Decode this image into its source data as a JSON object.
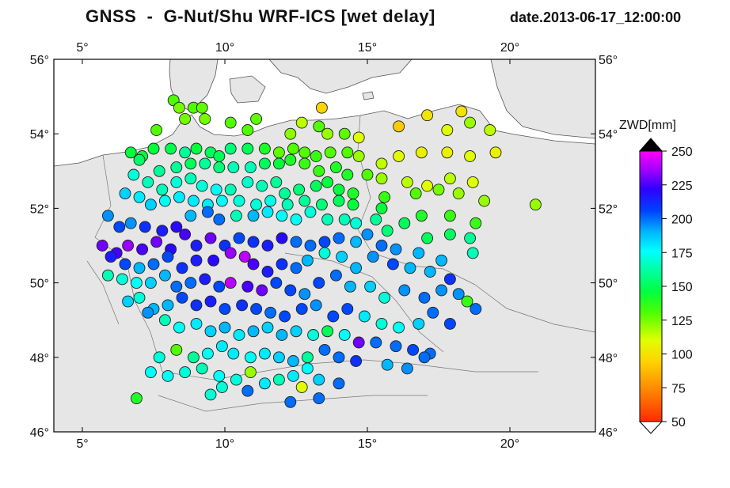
{
  "title": "GNSS  -  G-Nut/Shu WRF-ICS [wet delay]",
  "date": "date.2013-06-17_12:00:00",
  "map": {
    "lon_range": [
      4,
      23
    ],
    "lat_range": [
      46,
      56
    ],
    "lon_ticks": [
      "5°",
      "10°",
      "15°",
      "20°"
    ],
    "lat_ticks": [
      "46°",
      "48°",
      "50°",
      "52°",
      "54°",
      "56°"
    ],
    "land_color": "#e6e6e6",
    "sea_color": "#ffffff"
  },
  "colorbar": {
    "label": "ZWD[mm]",
    "min": 50,
    "max": 250,
    "ticks": [
      "250",
      "225",
      "200",
      "175",
      "150",
      "125",
      "100",
      "75",
      "50"
    ]
  },
  "stations": [
    [
      8.2,
      54.9,
      130
    ],
    [
      8.4,
      54.7,
      125
    ],
    [
      8.9,
      54.7,
      130
    ],
    [
      9.2,
      54.7,
      128
    ],
    [
      8.6,
      54.4,
      125
    ],
    [
      9.3,
      54.4,
      125
    ],
    [
      10.2,
      54.3,
      130
    ],
    [
      10.8,
      54.1,
      130
    ],
    [
      11.1,
      54.4,
      128
    ],
    [
      7.6,
      54.1,
      130
    ],
    [
      12.3,
      54.0,
      122
    ],
    [
      12.7,
      54.3,
      115
    ],
    [
      13.3,
      54.2,
      130
    ],
    [
      13.4,
      54.7,
      95
    ],
    [
      13.6,
      54.0,
      120
    ],
    [
      14.2,
      54.0,
      128
    ],
    [
      14.7,
      53.9,
      110
    ],
    [
      16.1,
      54.2,
      92
    ],
    [
      17.1,
      54.5,
      100
    ],
    [
      18.3,
      54.6,
      100
    ],
    [
      17.8,
      54.1,
      110
    ],
    [
      18.6,
      54.3,
      120
    ],
    [
      19.3,
      54.1,
      115
    ],
    [
      6.7,
      53.5,
      145
    ],
    [
      7.1,
      53.4,
      145
    ],
    [
      7.5,
      53.6,
      145
    ],
    [
      8.1,
      53.6,
      148
    ],
    [
      8.6,
      53.5,
      160
    ],
    [
      9.0,
      53.6,
      145
    ],
    [
      9.5,
      53.5,
      150
    ],
    [
      9.8,
      53.4,
      150
    ],
    [
      10.2,
      53.6,
      155
    ],
    [
      10.8,
      53.6,
      150
    ],
    [
      11.4,
      53.6,
      140
    ],
    [
      11.9,
      53.5,
      128
    ],
    [
      12.4,
      53.6,
      130
    ],
    [
      12.8,
      53.5,
      130
    ],
    [
      13.2,
      53.4,
      135
    ],
    [
      13.7,
      53.5,
      130
    ],
    [
      14.3,
      53.5,
      130
    ],
    [
      14.7,
      53.4,
      120
    ],
    [
      15.5,
      53.2,
      115
    ],
    [
      16.1,
      53.4,
      108
    ],
    [
      16.9,
      53.5,
      105
    ],
    [
      17.8,
      53.5,
      105
    ],
    [
      18.6,
      53.4,
      110
    ],
    [
      19.5,
      53.5,
      105
    ],
    [
      7.0,
      53.3,
      152
    ],
    [
      7.7,
      53.0,
      160
    ],
    [
      8.3,
      53.1,
      160
    ],
    [
      8.8,
      53.2,
      150
    ],
    [
      9.3,
      53.2,
      160
    ],
    [
      9.8,
      53.1,
      155
    ],
    [
      10.3,
      53.1,
      165
    ],
    [
      10.9,
      53.1,
      165
    ],
    [
      11.4,
      53.2,
      150
    ],
    [
      11.9,
      53.2,
      145
    ],
    [
      12.3,
      53.3,
      140
    ],
    [
      12.8,
      53.2,
      135
    ],
    [
      13.3,
      53.0,
      135
    ],
    [
      13.9,
      53.1,
      140
    ],
    [
      14.3,
      52.9,
      140
    ],
    [
      15.0,
      52.9,
      130
    ],
    [
      15.5,
      52.8,
      120
    ],
    [
      16.4,
      52.7,
      115
    ],
    [
      17.1,
      52.6,
      110
    ],
    [
      17.9,
      52.8,
      115
    ],
    [
      18.7,
      52.7,
      110
    ],
    [
      6.8,
      52.9,
      170
    ],
    [
      7.3,
      52.7,
      165
    ],
    [
      7.8,
      52.5,
      165
    ],
    [
      8.3,
      52.7,
      170
    ],
    [
      8.8,
      52.8,
      165
    ],
    [
      9.2,
      52.6,
      170
    ],
    [
      9.7,
      52.5,
      175
    ],
    [
      10.2,
      52.5,
      165
    ],
    [
      10.8,
      52.7,
      168
    ],
    [
      11.3,
      52.6,
      165
    ],
    [
      11.8,
      52.7,
      160
    ],
    [
      12.1,
      52.4,
      160
    ],
    [
      12.6,
      52.5,
      155
    ],
    [
      13.2,
      52.6,
      150
    ],
    [
      13.6,
      52.7,
      145
    ],
    [
      14.0,
      52.5,
      145
    ],
    [
      14.5,
      52.4,
      140
    ],
    [
      15.6,
      52.3,
      135
    ],
    [
      16.7,
      52.4,
      130
    ],
    [
      17.5,
      52.5,
      125
    ],
    [
      18.2,
      52.4,
      120
    ],
    [
      19.1,
      52.2,
      120
    ],
    [
      20.9,
      52.1,
      120
    ],
    [
      6.5,
      52.4,
      185
    ],
    [
      7.0,
      52.3,
      180
    ],
    [
      7.4,
      52.1,
      185
    ],
    [
      7.9,
      52.2,
      175
    ],
    [
      8.4,
      52.3,
      180
    ],
    [
      8.9,
      52.2,
      180
    ],
    [
      9.4,
      52.1,
      180
    ],
    [
      9.9,
      52.2,
      175
    ],
    [
      10.5,
      52.2,
      170
    ],
    [
      11.1,
      52.1,
      170
    ],
    [
      11.6,
      52.2,
      172
    ],
    [
      12.2,
      52.1,
      165
    ],
    [
      12.8,
      52.2,
      160
    ],
    [
      13.4,
      52.1,
      155
    ],
    [
      14.0,
      52.2,
      150
    ],
    [
      14.5,
      52.1,
      145
    ],
    [
      15.5,
      52.0,
      145
    ],
    [
      16.9,
      51.8,
      140
    ],
    [
      17.9,
      51.8,
      135
    ],
    [
      18.8,
      51.6,
      135
    ],
    [
      5.9,
      51.8,
      195
    ],
    [
      6.3,
      51.5,
      205
    ],
    [
      6.7,
      51.6,
      195
    ],
    [
      7.2,
      51.5,
      210
    ],
    [
      7.8,
      51.4,
      215
    ],
    [
      8.3,
      51.5,
      220
    ],
    [
      8.8,
      51.8,
      190
    ],
    [
      9.4,
      51.9,
      200
    ],
    [
      9.8,
      51.7,
      200
    ],
    [
      10.4,
      51.8,
      165
    ],
    [
      11.0,
      51.8,
      190
    ],
    [
      11.5,
      51.9,
      180
    ],
    [
      12.0,
      51.8,
      175
    ],
    [
      12.5,
      51.7,
      175
    ],
    [
      13.0,
      51.9,
      170
    ],
    [
      13.6,
      51.7,
      165
    ],
    [
      14.2,
      51.7,
      165
    ],
    [
      14.6,
      51.6,
      170
    ],
    [
      15.3,
      51.7,
      160
    ],
    [
      15.7,
      51.4,
      155
    ],
    [
      16.3,
      51.6,
      150
    ],
    [
      17.1,
      51.2,
      150
    ],
    [
      17.9,
      51.3,
      150
    ],
    [
      18.6,
      51.2,
      160
    ],
    [
      5.7,
      51.0,
      230
    ],
    [
      6.2,
      50.8,
      225
    ],
    [
      6.6,
      51.0,
      235
    ],
    [
      7.1,
      50.9,
      225
    ],
    [
      7.6,
      51.1,
      230
    ],
    [
      8.1,
      50.9,
      220
    ],
    [
      8.6,
      51.3,
      225
    ],
    [
      9.0,
      51.0,
      215
    ],
    [
      9.5,
      51.2,
      230
    ],
    [
      10.0,
      51.0,
      210
    ],
    [
      10.5,
      51.2,
      205
    ],
    [
      11.0,
      51.1,
      210
    ],
    [
      11.5,
      51.0,
      215
    ],
    [
      12.0,
      51.2,
      220
    ],
    [
      12.5,
      51.1,
      200
    ],
    [
      13.0,
      51.0,
      200
    ],
    [
      13.5,
      51.1,
      205
    ],
    [
      14.0,
      51.2,
      200
    ],
    [
      14.6,
      51.1,
      190
    ],
    [
      15.0,
      51.3,
      195
    ],
    [
      15.5,
      51.0,
      200
    ],
    [
      16.0,
      50.9,
      195
    ],
    [
      16.8,
      50.8,
      190
    ],
    [
      17.6,
      50.6,
      190
    ],
    [
      18.7,
      50.8,
      165
    ],
    [
      6.0,
      50.7,
      215
    ],
    [
      6.5,
      50.5,
      205
    ],
    [
      7.0,
      50.4,
      190
    ],
    [
      7.5,
      50.5,
      200
    ],
    [
      8.0,
      50.7,
      205
    ],
    [
      8.5,
      50.4,
      210
    ],
    [
      9.0,
      50.6,
      215
    ],
    [
      9.6,
      50.6,
      220
    ],
    [
      10.2,
      50.8,
      235
    ],
    [
      10.7,
      50.7,
      240
    ],
    [
      11.0,
      50.5,
      225
    ],
    [
      11.5,
      50.3,
      215
    ],
    [
      12.0,
      50.5,
      210
    ],
    [
      12.5,
      50.4,
      200
    ],
    [
      12.9,
      50.6,
      190
    ],
    [
      13.5,
      50.8,
      170
    ],
    [
      14.1,
      50.7,
      185
    ],
    [
      14.6,
      50.4,
      190
    ],
    [
      15.2,
      50.7,
      195
    ],
    [
      15.9,
      50.5,
      205
    ],
    [
      16.5,
      50.4,
      190
    ],
    [
      17.2,
      50.3,
      190
    ],
    [
      17.9,
      50.1,
      210
    ],
    [
      5.9,
      50.2,
      165
    ],
    [
      6.4,
      50.1,
      170
    ],
    [
      6.9,
      50.0,
      175
    ],
    [
      7.4,
      50.0,
      185
    ],
    [
      7.9,
      50.2,
      190
    ],
    [
      8.3,
      49.9,
      200
    ],
    [
      8.8,
      50.0,
      200
    ],
    [
      9.3,
      50.1,
      215
    ],
    [
      9.8,
      49.9,
      205
    ],
    [
      10.2,
      50.0,
      240
    ],
    [
      10.8,
      49.9,
      225
    ],
    [
      11.3,
      49.8,
      230
    ],
    [
      11.8,
      50.0,
      205
    ],
    [
      12.3,
      49.8,
      205
    ],
    [
      12.8,
      49.7,
      195
    ],
    [
      13.3,
      50.0,
      205
    ],
    [
      13.9,
      50.2,
      200
    ],
    [
      14.4,
      49.9,
      190
    ],
    [
      15.1,
      49.9,
      185
    ],
    [
      15.6,
      49.6,
      170
    ],
    [
      16.3,
      49.8,
      195
    ],
    [
      17.0,
      49.6,
      200
    ],
    [
      17.6,
      49.8,
      195
    ],
    [
      18.2,
      49.7,
      195
    ],
    [
      18.5,
      49.5,
      135
    ],
    [
      6.6,
      49.5,
      185
    ],
    [
      7.0,
      49.6,
      170
    ],
    [
      7.5,
      49.3,
      190
    ],
    [
      8.0,
      49.4,
      190
    ],
    [
      8.5,
      49.6,
      205
    ],
    [
      9.0,
      49.4,
      210
    ],
    [
      9.5,
      49.5,
      215
    ],
    [
      10.0,
      49.3,
      205
    ],
    [
      10.6,
      49.4,
      210
    ],
    [
      11.1,
      49.3,
      205
    ],
    [
      11.6,
      49.2,
      200
    ],
    [
      12.1,
      49.1,
      205
    ],
    [
      12.7,
      49.3,
      205
    ],
    [
      13.2,
      49.4,
      195
    ],
    [
      13.8,
      49.1,
      205
    ],
    [
      14.3,
      49.3,
      205
    ],
    [
      14.9,
      49.1,
      180
    ],
    [
      15.5,
      48.9,
      170
    ],
    [
      16.1,
      48.8,
      175
    ],
    [
      16.8,
      48.9,
      185
    ],
    [
      17.3,
      49.2,
      200
    ],
    [
      17.9,
      48.9,
      205
    ],
    [
      18.8,
      49.3,
      200
    ],
    [
      7.3,
      49.2,
      195
    ],
    [
      7.9,
      49.0,
      165
    ],
    [
      8.4,
      48.8,
      175
    ],
    [
      9.0,
      48.9,
      180
    ],
    [
      9.5,
      48.7,
      185
    ],
    [
      10.0,
      48.8,
      190
    ],
    [
      10.5,
      48.6,
      180
    ],
    [
      11.0,
      48.7,
      190
    ],
    [
      11.5,
      48.8,
      185
    ],
    [
      12.0,
      48.6,
      190
    ],
    [
      12.5,
      48.7,
      185
    ],
    [
      13.1,
      48.6,
      170
    ],
    [
      13.6,
      48.7,
      150
    ],
    [
      14.2,
      48.6,
      175
    ],
    [
      14.7,
      48.4,
      230
    ],
    [
      15.3,
      48.4,
      200
    ],
    [
      16.0,
      48.3,
      200
    ],
    [
      16.6,
      48.2,
      205
    ],
    [
      17.2,
      48.1,
      200
    ],
    [
      7.7,
      48.0,
      170
    ],
    [
      8.3,
      48.2,
      130
    ],
    [
      8.9,
      48.0,
      160
    ],
    [
      9.4,
      48.1,
      175
    ],
    [
      9.9,
      48.3,
      180
    ],
    [
      10.3,
      48.1,
      180
    ],
    [
      10.9,
      48.0,
      175
    ],
    [
      11.4,
      48.1,
      180
    ],
    [
      11.9,
      48.0,
      185
    ],
    [
      12.4,
      47.9,
      190
    ],
    [
      12.9,
      48.0,
      160
    ],
    [
      13.5,
      48.2,
      200
    ],
    [
      14.0,
      48.0,
      200
    ],
    [
      14.6,
      47.9,
      210
    ],
    [
      15.7,
      47.8,
      190
    ],
    [
      16.4,
      47.7,
      195
    ],
    [
      17.0,
      48.0,
      200
    ],
    [
      7.4,
      47.6,
      175
    ],
    [
      8.0,
      47.5,
      175
    ],
    [
      8.6,
      47.6,
      170
    ],
    [
      9.2,
      47.7,
      165
    ],
    [
      9.8,
      47.5,
      175
    ],
    [
      10.4,
      47.4,
      170
    ],
    [
      10.9,
      47.6,
      120
    ],
    [
      11.4,
      47.3,
      180
    ],
    [
      11.9,
      47.4,
      165
    ],
    [
      12.4,
      47.5,
      180
    ],
    [
      12.9,
      47.7,
      175
    ],
    [
      13.3,
      47.4,
      185
    ],
    [
      14.0,
      47.3,
      200
    ],
    [
      6.9,
      46.9,
      140
    ],
    [
      9.5,
      47.0,
      170
    ],
    [
      9.9,
      47.2,
      170
    ],
    [
      10.8,
      47.1,
      200
    ],
    [
      12.7,
      47.2,
      110
    ],
    [
      12.3,
      46.8,
      200
    ],
    [
      13.3,
      46.9,
      200
    ]
  ]
}
